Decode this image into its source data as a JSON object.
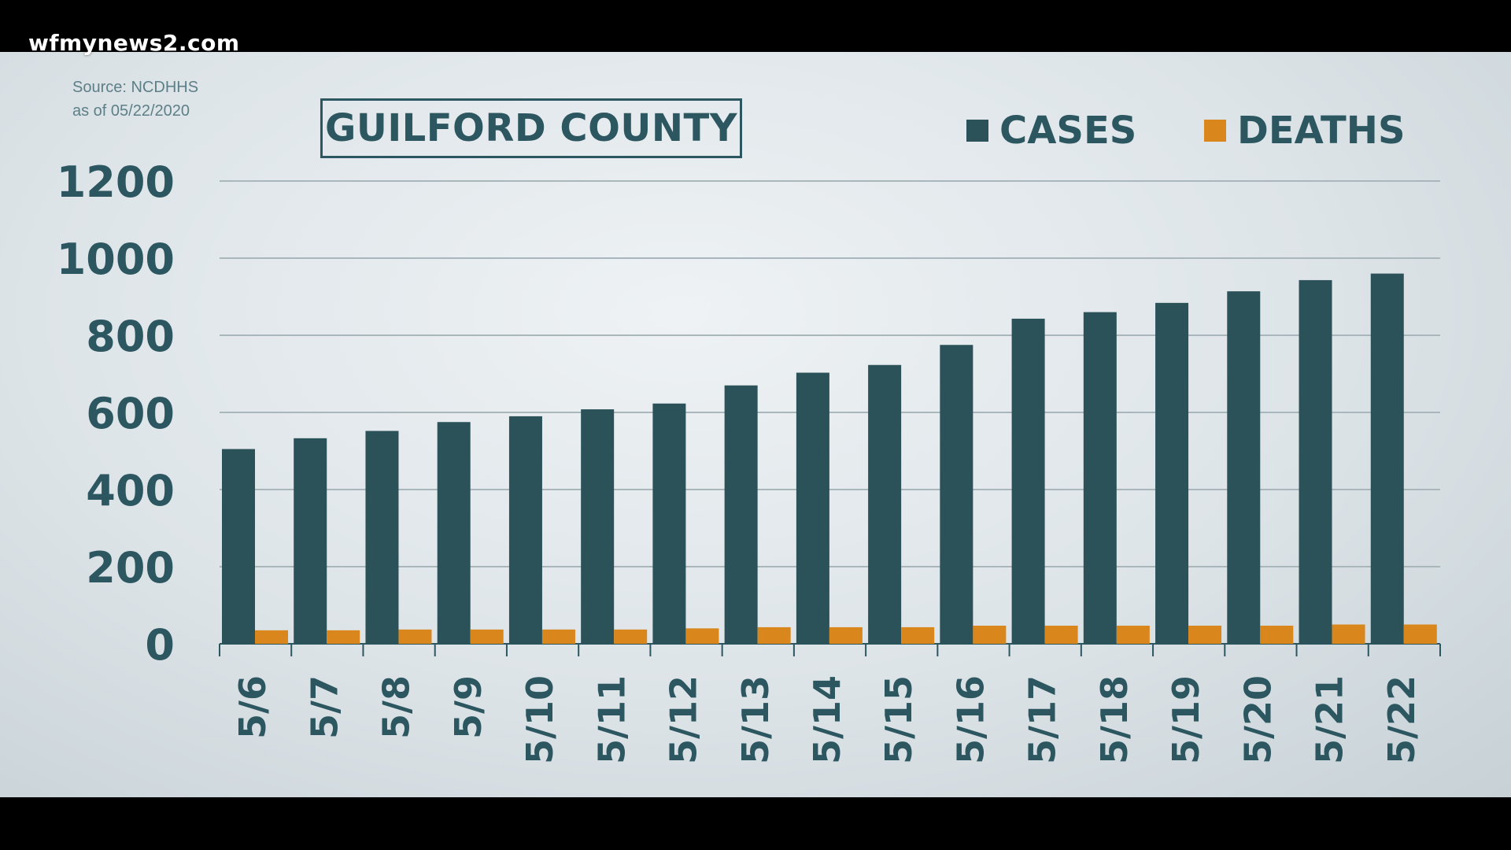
{
  "watermark": "wfmynews2.com",
  "source": {
    "line1": "Source: NCDHHS",
    "line2": "as of 05/22/2020"
  },
  "colors": {
    "cases": "#2b5259",
    "deaths": "#d9861c",
    "text": "#2c5660",
    "grid": "#a9b6bb"
  },
  "chart_data": {
    "type": "bar",
    "title": "GUILFORD COUNTY",
    "xlabel": "",
    "ylabel": "",
    "ylim": [
      0,
      1200
    ],
    "yticks": [
      "0",
      "200",
      "400",
      "600",
      "800",
      "1000",
      "1200"
    ],
    "grid": true,
    "legend_position": "top-right",
    "categories": [
      "5/6",
      "5/7",
      "5/8",
      "5/9",
      "5/10",
      "5/11",
      "5/12",
      "5/13",
      "5/14",
      "5/15",
      "5/16",
      "5/17",
      "5/18",
      "5/19",
      "5/20",
      "5/21",
      "5/22"
    ],
    "series": [
      {
        "name": "CASES",
        "values": [
          505,
          533,
          552,
          575,
          590,
          608,
          623,
          670,
          703,
          723,
          775,
          843,
          860,
          884,
          914,
          943,
          960
        ]
      },
      {
        "name": "DEATHS",
        "values": [
          35,
          35,
          37,
          37,
          37,
          37,
          40,
          43,
          43,
          43,
          47,
          47,
          47,
          47,
          47,
          50,
          50
        ]
      }
    ]
  }
}
